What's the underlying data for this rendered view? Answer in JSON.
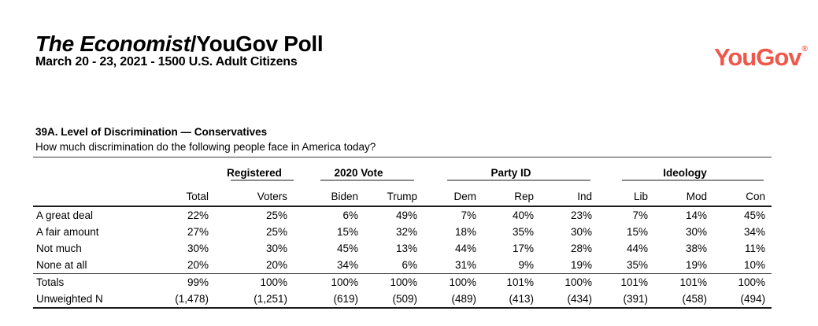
{
  "masthead": {
    "title_italic": "The Economist",
    "title_rest": "/YouGov Poll",
    "dateline": "March 20 - 23, 2021 - 1500 U.S. Adult Citizens",
    "logo_text": "YouGov",
    "logo_mark": "®",
    "logo_color": "#F0564A"
  },
  "section": {
    "title": "39A. Level of Discrimination — Conservatives",
    "question": "How much discrimination do the following people face in America today?"
  },
  "table": {
    "groups": [
      {
        "label": "",
        "span": 2
      },
      {
        "label": "Registered",
        "span": 1
      },
      {
        "label": "2020 Vote",
        "span": 2
      },
      {
        "label": "Party ID",
        "span": 3
      },
      {
        "label": "Ideology",
        "span": 3
      }
    ],
    "columns": [
      "Total",
      "Voters",
      "Biden",
      "Trump",
      "Dem",
      "Rep",
      "Ind",
      "Lib",
      "Mod",
      "Con"
    ],
    "rows": [
      {
        "label": "A great deal",
        "values": [
          "22%",
          "25%",
          "6%",
          "49%",
          "7%",
          "40%",
          "23%",
          "7%",
          "14%",
          "45%"
        ]
      },
      {
        "label": "A fair amount",
        "values": [
          "27%",
          "25%",
          "15%",
          "32%",
          "18%",
          "35%",
          "30%",
          "15%",
          "30%",
          "34%"
        ]
      },
      {
        "label": "Not much",
        "values": [
          "30%",
          "30%",
          "45%",
          "13%",
          "44%",
          "17%",
          "28%",
          "44%",
          "38%",
          "11%"
        ]
      },
      {
        "label": "None at all",
        "values": [
          "20%",
          "20%",
          "34%",
          "6%",
          "31%",
          "9%",
          "19%",
          "35%",
          "19%",
          "10%"
        ]
      }
    ],
    "footer_rows": [
      {
        "label": "Totals",
        "values": [
          "99%",
          "100%",
          "100%",
          "100%",
          "100%",
          "101%",
          "100%",
          "101%",
          "101%",
          "100%"
        ]
      },
      {
        "label": "Unweighted N",
        "values": [
          "(1,478)",
          "(1,251)",
          "(619)",
          "(509)",
          "(489)",
          "(413)",
          "(434)",
          "(391)",
          "(458)",
          "(494)"
        ]
      }
    ]
  }
}
